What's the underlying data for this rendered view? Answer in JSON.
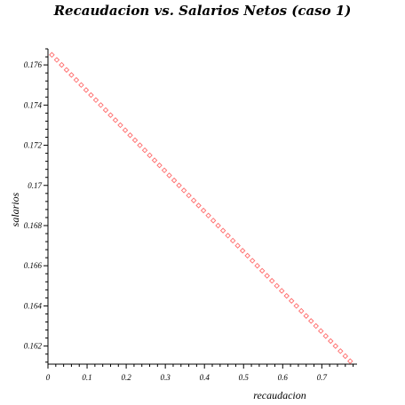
{
  "chart_data": {
    "type": "scatter",
    "title": "Recaudacion vs. Salarios Netos (caso 1)",
    "xlabel": "recaudacion",
    "ylabel": "salarios",
    "xlim": [
      0,
      0.79
    ],
    "ylim": [
      0.1611,
      0.1768
    ],
    "x_ticks": [
      0,
      0.1,
      0.2,
      0.3,
      0.4,
      0.5,
      0.6,
      0.7
    ],
    "x_tick_labels": [
      "0",
      "0.1",
      "0.2",
      "0.3",
      "0.4",
      "0.5",
      "0.6",
      "0.7"
    ],
    "y_ticks": [
      0.162,
      0.164,
      0.166,
      0.168,
      0.17,
      0.172,
      0.174,
      0.176
    ],
    "y_tick_labels": [
      "0.162",
      "0.164",
      "0.166",
      "0.168",
      "0.17",
      "0.172",
      "0.174",
      "0.176"
    ],
    "grid": false,
    "marker": "diamond",
    "marker_color": "#ff6b6b",
    "series": [
      {
        "x": [
          0.01,
          0.0225,
          0.035,
          0.0475,
          0.06,
          0.0725,
          0.085,
          0.0975,
          0.11,
          0.1225,
          0.135,
          0.1475,
          0.16,
          0.1725,
          0.185,
          0.1975,
          0.21,
          0.2225,
          0.235,
          0.2475,
          0.26,
          0.2725,
          0.285,
          0.2975,
          0.31,
          0.3225,
          0.335,
          0.3475,
          0.36,
          0.3725,
          0.385,
          0.3975,
          0.41,
          0.4225,
          0.435,
          0.4475,
          0.46,
          0.4725,
          0.485,
          0.4975,
          0.51,
          0.5225,
          0.535,
          0.5475,
          0.56,
          0.5725,
          0.585,
          0.5975,
          0.61,
          0.6225,
          0.635,
          0.6475,
          0.66,
          0.6725,
          0.685,
          0.6975,
          0.71,
          0.7225,
          0.735,
          0.7475,
          0.76,
          0.7725
        ],
        "y": [
          0.1765,
          0.17625,
          0.176,
          0.17575,
          0.1755,
          0.17525,
          0.175,
          0.17475,
          0.1745,
          0.17425,
          0.174,
          0.17375,
          0.1735,
          0.17325,
          0.173,
          0.17275,
          0.1725,
          0.17225,
          0.172,
          0.17175,
          0.1715,
          0.17125,
          0.171,
          0.17075,
          0.1705,
          0.17025,
          0.17,
          0.16975,
          0.1695,
          0.16925,
          0.169,
          0.16875,
          0.1685,
          0.16825,
          0.168,
          0.16775,
          0.1675,
          0.16725,
          0.167,
          0.16675,
          0.1665,
          0.16625,
          0.166,
          0.16575,
          0.1655,
          0.16525,
          0.165,
          0.16475,
          0.1645,
          0.16425,
          0.164,
          0.16375,
          0.1635,
          0.16325,
          0.163,
          0.16275,
          0.1625,
          0.16225,
          0.162,
          0.16175,
          0.1615,
          0.16125
        ]
      }
    ]
  }
}
